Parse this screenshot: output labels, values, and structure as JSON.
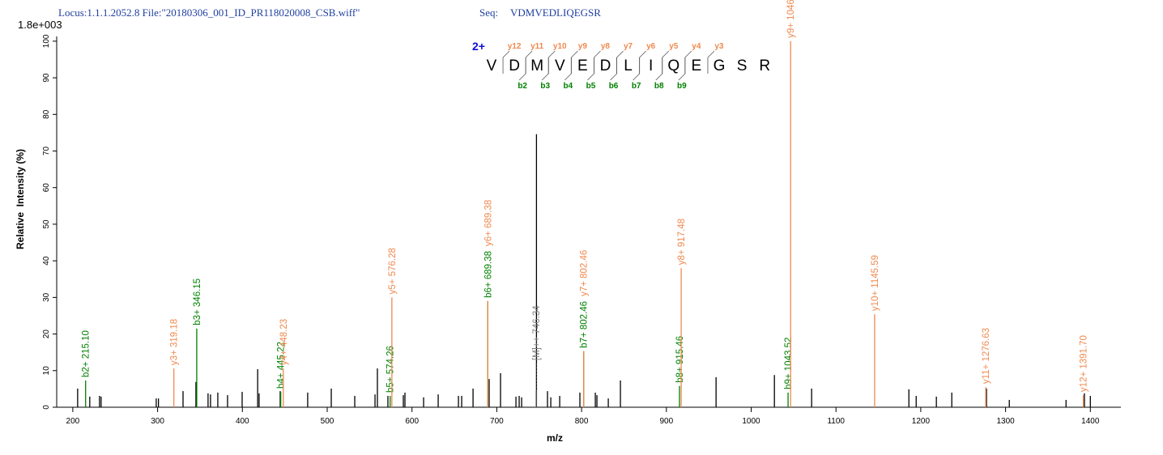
{
  "chart_data": {
    "type": "spectrum",
    "locus": "Locus:1.1.1.2052.8 File:\"20180306_001_ID_PR118020008_CSB.wiff\"",
    "seq_label": "Seq:",
    "sequence": "VDMVEDLIQEGSR",
    "scale": "1.8e+003",
    "xlabel": "m/z",
    "ylabel": "Relative  Intensity (%)",
    "xlim": [
      181,
      1436
    ],
    "ylim": [
      0,
      101.3
    ],
    "xticks": [
      200,
      300,
      400,
      500,
      600,
      700,
      800,
      900,
      1000,
      1100,
      1200,
      1300,
      1400
    ],
    "yticks": [
      0,
      10,
      20,
      30,
      40,
      50,
      60,
      70,
      80,
      90,
      100
    ],
    "series": [
      {
        "color": "#000000",
        "x": [
          205.7,
          220,
          231.5,
          233.4,
          298.4,
          301,
          330,
          345.2,
          359.5,
          362.4,
          371,
          382.5,
          399.7,
          418,
          419.7,
          444.6,
          477,
          504.8,
          532.5,
          556.4,
          559.2,
          571.6,
          589.8,
          591.7,
          613.7,
          630.9,
          654.8,
          658.6,
          672,
          691,
          704.4,
          722.6,
          726.4,
          729.3,
          746.8,
          759.8,
          763.7,
          774.2,
          798,
          816.2,
          818.1,
          831.5,
          845.8,
          958.6,
          1027.4,
          1071.3,
          1186,
          1194.6,
          1218.4,
          1236.6,
          1277.5,
          1304.4,
          1371.3,
          1393,
          1400
        ],
        "values": [
          5.1,
          2.9,
          3.1,
          2.9,
          2.4,
          2.4,
          4.4,
          6.9,
          3.8,
          3.5,
          4,
          3.3,
          4.2,
          10.4,
          3.8,
          4.4,
          4,
          5.1,
          3.1,
          3.5,
          10.6,
          3.1,
          3.3,
          4,
          2.7,
          3.5,
          3.1,
          3.1,
          5.1,
          7.7,
          9.3,
          2.9,
          3.1,
          2.7,
          74.6,
          4.4,
          2.7,
          3.1,
          4,
          4,
          3.3,
          2.4,
          7.3,
          8.2,
          8.8,
          5.1,
          4.9,
          3.1,
          2.9,
          4,
          5.1,
          2,
          2,
          3.8,
          3.1
        ]
      },
      {
        "color": "#008000",
        "x": [
          215.1,
          346.15,
          445.22,
          574.26,
          689.38,
          802.46,
          915.46,
          1043.52
        ],
        "values": [
          7.3,
          21.5,
          4.2,
          3.1,
          29,
          15.3,
          5.8,
          4
        ],
        "labels": [
          "b2+ 215.10",
          "b3+ 346.15",
          "b4+ 445.22",
          "b5+ 574.26",
          "b6+ 689.38",
          "b7+ 802.46",
          "b8+ 915.46",
          "b9+ 1043.52"
        ]
      },
      {
        "color": "#f0894f",
        "x": [
          319.18,
          448.23,
          576.28,
          689.38,
          802.46,
          917.48,
          1046.52,
          1145.59,
          1276.63,
          1391.7
        ],
        "values": [
          10.6,
          10.6,
          30,
          29,
          15.3,
          38,
          100,
          25.4,
          5.5,
          3.3
        ],
        "labels": [
          "y3+ 319.18",
          "y4+ 448.23",
          "y5+ 576.28",
          "y6+ 689.38",
          "y7+ 802.46",
          "y8+ 917.48",
          "y9+ 1046.52",
          "y10+ 1145.59",
          "y11+ 1276.63",
          "y12+ 1391.70"
        ]
      },
      {
        "color": "#808080",
        "dashed": true,
        "x": [
          746.34
        ],
        "values": [
          4.4
        ],
        "labels": [
          "[M]++ 746.34"
        ]
      }
    ],
    "annotation": {
      "charge": "2+",
      "residues": [
        "V",
        "D",
        "M",
        "V",
        "E",
        "D",
        "L",
        "I",
        "Q",
        "E",
        "G",
        "S",
        "R"
      ],
      "y_ions": [
        "y12",
        "y11",
        "y10",
        "y9",
        "y8",
        "y7",
        "y6",
        "y5",
        "y4",
        "y3"
      ],
      "b_ions": [
        "b2",
        "b3",
        "b4",
        "b5",
        "b6",
        "b7",
        "b8",
        "b9"
      ]
    }
  }
}
